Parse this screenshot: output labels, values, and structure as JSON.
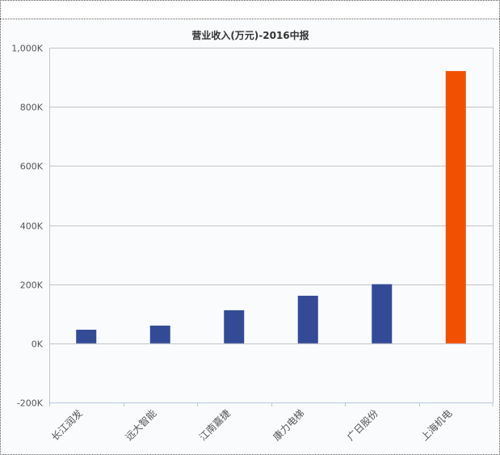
{
  "chart_data": {
    "type": "bar",
    "title": "营业收入(万元)-2016中报",
    "categories": [
      "长江润发",
      "远大智能",
      "江南嘉捷",
      "康力电梯",
      "广日股份",
      "上海机电"
    ],
    "values": [
      46,
      60,
      112,
      161,
      200,
      921
    ],
    "unit": "K",
    "ylim": [
      -200,
      1000
    ],
    "yticks": [
      -200,
      0,
      200,
      400,
      600,
      800,
      1000
    ],
    "ytick_labels": [
      "-200K",
      "0K",
      "200K",
      "400K",
      "600K",
      "800K",
      "1,000K"
    ],
    "grid": true,
    "colors": {
      "default": "#334a96",
      "highlight": "#f05000"
    },
    "highlight_index": 5
  }
}
